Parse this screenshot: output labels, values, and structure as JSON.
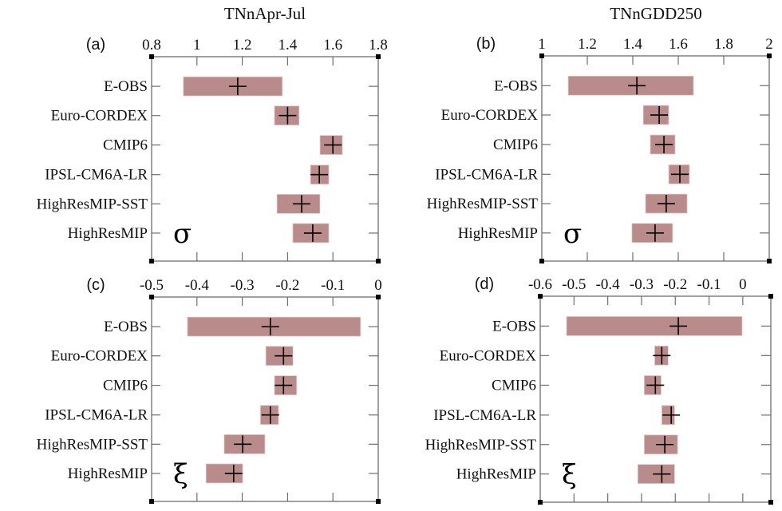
{
  "colors": {
    "bar": "#ba8b8b",
    "cross": "#000000",
    "frame": "#6e6e6e"
  },
  "chart_data": [
    {
      "id": "a",
      "type": "interval",
      "panel_label": "(a)",
      "title": "TNnApr-Jul",
      "parameter": "σ",
      "xlim": [
        0.8,
        1.8
      ],
      "xticks": [
        0.8,
        1.0,
        1.2,
        1.4,
        1.6,
        1.8
      ],
      "xtick_labels": [
        "0.8",
        "1",
        "1.2",
        "1.4",
        "1.6",
        "1.8"
      ],
      "categories": [
        "E-OBS",
        "Euro-CORDEX",
        "CMIP6",
        "IPSL-CM6A-LR",
        "HighResMIP-SST",
        "HighResMIP"
      ],
      "low": [
        0.94,
        1.342,
        1.543,
        1.501,
        1.353,
        1.423
      ],
      "high": [
        1.377,
        1.451,
        1.642,
        1.582,
        1.543,
        1.582
      ],
      "estimate": [
        1.18,
        1.4,
        1.6,
        1.54,
        1.462,
        1.511
      ],
      "grid": false
    },
    {
      "id": "b",
      "type": "interval",
      "panel_label": "(b)",
      "title": "TNnGDD250",
      "parameter": "σ",
      "xlim": [
        1.0,
        2.0
      ],
      "xticks": [
        1.0,
        1.2,
        1.4,
        1.6,
        1.8,
        2.0
      ],
      "xtick_labels": [
        "1",
        "1.2",
        "1.4",
        "1.6",
        "1.8",
        "2"
      ],
      "categories": [
        "E-OBS",
        "Euro-CORDEX",
        "CMIP6",
        "IPSL-CM6A-LR",
        "HighResMIP-SST",
        "HighResMIP"
      ],
      "low": [
        1.116,
        1.446,
        1.477,
        1.558,
        1.456,
        1.396
      ],
      "high": [
        1.667,
        1.558,
        1.586,
        1.649,
        1.639,
        1.575
      ],
      "estimate": [
        1.418,
        1.516,
        1.537,
        1.607,
        1.547,
        1.498
      ],
      "grid": false
    },
    {
      "id": "c",
      "type": "interval",
      "panel_label": "(c)",
      "title": "",
      "parameter": "ξ",
      "xlim": [
        -0.5,
        0.0
      ],
      "xticks": [
        -0.5,
        -0.4,
        -0.3,
        -0.2,
        -0.1,
        0.0
      ],
      "xtick_labels": [
        "-0.5",
        "-0.4",
        "-0.3",
        "-0.2",
        "-0.1",
        "0"
      ],
      "categories": [
        "E-OBS",
        "Euro-CORDEX",
        "CMIP6",
        "IPSL-CM6A-LR",
        "HighResMIP-SST",
        "HighResMIP"
      ],
      "low": [
        -0.421,
        -0.248,
        -0.229,
        -0.26,
        -0.34,
        -0.38
      ],
      "high": [
        -0.039,
        -0.188,
        -0.18,
        -0.22,
        -0.25,
        -0.299
      ],
      "estimate": [
        -0.238,
        -0.209,
        -0.209,
        -0.238,
        -0.299,
        -0.319
      ],
      "grid": false
    },
    {
      "id": "d",
      "type": "interval",
      "panel_label": "(d)",
      "title": "",
      "parameter": "ξ",
      "xlim": [
        -0.6,
        0.083
      ],
      "xticks": [
        -0.6,
        -0.5,
        -0.4,
        -0.3,
        -0.2,
        -0.1,
        0.0
      ],
      "xtick_labels": [
        "-0.6",
        "-0.5",
        "-0.4",
        "-0.3",
        "-0.2",
        "-0.1",
        "0"
      ],
      "categories": [
        "E-OBS",
        "Euro-CORDEX",
        "CMIP6",
        "IPSL-CM6A-LR",
        "HighResMIP-SST",
        "HighResMIP"
      ],
      "low": [
        -0.522,
        -0.261,
        -0.292,
        -0.24,
        -0.292,
        -0.311
      ],
      "high": [
        -0.002,
        -0.221,
        -0.242,
        -0.202,
        -0.193,
        -0.202
      ],
      "estimate": [
        -0.191,
        -0.24,
        -0.259,
        -0.212,
        -0.231,
        -0.24
      ],
      "grid": false
    }
  ]
}
